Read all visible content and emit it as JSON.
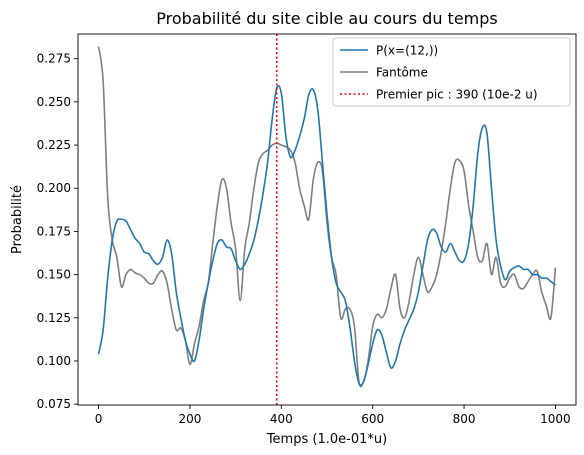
{
  "chart_data": {
    "type": "line",
    "title": "Probabilité du site cible au cours du temps",
    "xlabel": "Temps (1.0e-01*u)",
    "ylabel": "Probabilité",
    "xlim": [
      -45,
      1045
    ],
    "ylim": [
      0.0745,
      0.2893
    ],
    "x_ticks": [
      0,
      200,
      400,
      600,
      800,
      1000
    ],
    "y_ticks": [
      0.075,
      0.1,
      0.125,
      0.15,
      0.175,
      0.2,
      0.225,
      0.25,
      0.275
    ],
    "x_tick_labels": [
      "0",
      "200",
      "400",
      "600",
      "800",
      "1000"
    ],
    "y_tick_labels": [
      "0.075",
      "0.100",
      "0.125",
      "0.150",
      "0.175",
      "0.200",
      "0.225",
      "0.250",
      "0.275"
    ],
    "grid": false,
    "legend_position": "top-right",
    "series": [
      {
        "name": "P(x=(12,))",
        "color": "#1f77b4",
        "style": "solid",
        "x": [
          0,
          10,
          20,
          30,
          40,
          50,
          60,
          70,
          80,
          90,
          100,
          110,
          120,
          130,
          140,
          150,
          160,
          170,
          180,
          190,
          200,
          210,
          220,
          230,
          240,
          250,
          260,
          270,
          280,
          290,
          300,
          310,
          320,
          330,
          340,
          350,
          360,
          370,
          380,
          390,
          400,
          410,
          420,
          430,
          440,
          450,
          460,
          470,
          480,
          490,
          500,
          510,
          520,
          530,
          540,
          550,
          560,
          570,
          580,
          590,
          600,
          610,
          620,
          630,
          640,
          650,
          660,
          670,
          680,
          690,
          700,
          710,
          720,
          730,
          740,
          750,
          760,
          770,
          780,
          790,
          800,
          810,
          820,
          830,
          840,
          850,
          860,
          870,
          880,
          890,
          900,
          910,
          920,
          930,
          940,
          950,
          960,
          970,
          980,
          990,
          1000
        ],
        "y": [
          0.104,
          0.118,
          0.148,
          0.17,
          0.181,
          0.182,
          0.181,
          0.176,
          0.171,
          0.168,
          0.163,
          0.162,
          0.158,
          0.156,
          0.16,
          0.17,
          0.162,
          0.14,
          0.125,
          0.112,
          0.104,
          0.1,
          0.112,
          0.13,
          0.145,
          0.158,
          0.168,
          0.17,
          0.166,
          0.165,
          0.158,
          0.153,
          0.156,
          0.162,
          0.17,
          0.182,
          0.197,
          0.215,
          0.24,
          0.258,
          0.255,
          0.23,
          0.218,
          0.222,
          0.23,
          0.24,
          0.254,
          0.257,
          0.245,
          0.215,
          0.185,
          0.16,
          0.145,
          0.14,
          0.135,
          0.12,
          0.1,
          0.087,
          0.088,
          0.098,
          0.11,
          0.118,
          0.115,
          0.105,
          0.096,
          0.1,
          0.11,
          0.118,
          0.124,
          0.13,
          0.14,
          0.155,
          0.17,
          0.176,
          0.174,
          0.166,
          0.163,
          0.168,
          0.163,
          0.158,
          0.158,
          0.168,
          0.19,
          0.22,
          0.235,
          0.232,
          0.2,
          0.17,
          0.155,
          0.147,
          0.152,
          0.154,
          0.155,
          0.153,
          0.153,
          0.15,
          0.15,
          0.148,
          0.148,
          0.146,
          0.144
        ]
      },
      {
        "name": "Fantôme",
        "color": "#7f7f7f",
        "style": "solid",
        "x": [
          0,
          10,
          20,
          30,
          40,
          50,
          60,
          70,
          80,
          90,
          100,
          110,
          120,
          130,
          140,
          150,
          160,
          170,
          180,
          190,
          200,
          210,
          220,
          230,
          240,
          250,
          260,
          270,
          280,
          290,
          300,
          310,
          320,
          330,
          340,
          350,
          360,
          370,
          380,
          390,
          400,
          410,
          420,
          430,
          440,
          450,
          460,
          470,
          480,
          490,
          500,
          510,
          520,
          530,
          540,
          550,
          560,
          570,
          580,
          590,
          600,
          610,
          620,
          630,
          640,
          650,
          660,
          670,
          680,
          690,
          700,
          710,
          720,
          730,
          740,
          750,
          760,
          770,
          780,
          790,
          800,
          810,
          820,
          830,
          840,
          850,
          860,
          870,
          880,
          890,
          900,
          910,
          920,
          930,
          940,
          950,
          960,
          970,
          980,
          990,
          1000
        ],
        "y": [
          0.282,
          0.262,
          0.195,
          0.17,
          0.16,
          0.143,
          0.15,
          0.153,
          0.151,
          0.15,
          0.148,
          0.145,
          0.145,
          0.15,
          0.152,
          0.145,
          0.13,
          0.118,
          0.119,
          0.112,
          0.098,
          0.11,
          0.12,
          0.135,
          0.145,
          0.168,
          0.19,
          0.205,
          0.2,
          0.18,
          0.165,
          0.135,
          0.165,
          0.18,
          0.2,
          0.215,
          0.22,
          0.222,
          0.225,
          0.226,
          0.225,
          0.224,
          0.222,
          0.215,
          0.2,
          0.19,
          0.182,
          0.205,
          0.215,
          0.21,
          0.18,
          0.16,
          0.15,
          0.125,
          0.13,
          0.13,
          0.12,
          0.088,
          0.088,
          0.1,
          0.12,
          0.127,
          0.125,
          0.13,
          0.142,
          0.15,
          0.13,
          0.125,
          0.135,
          0.15,
          0.16,
          0.15,
          0.14,
          0.143,
          0.15,
          0.163,
          0.18,
          0.2,
          0.215,
          0.216,
          0.21,
          0.19,
          0.175,
          0.16,
          0.158,
          0.168,
          0.15,
          0.16,
          0.145,
          0.143,
          0.148,
          0.15,
          0.143,
          0.142,
          0.146,
          0.15,
          0.152,
          0.14,
          0.132,
          0.125,
          0.154
        ]
      }
    ],
    "annotations": [
      {
        "type": "vline",
        "x": 390,
        "label": "Premier pic : 390 (10e-2 u)",
        "color": "#ff0000",
        "style": "dotted"
      }
    ]
  }
}
